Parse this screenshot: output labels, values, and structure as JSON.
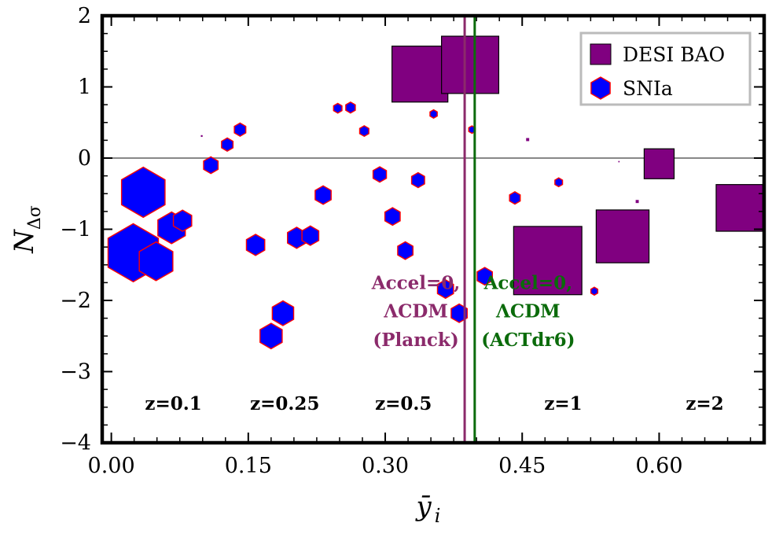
{
  "chart_data": {
    "type": "scatter",
    "xlabel": "ȳ",
    "xlabel_sub": "i",
    "ylabel": "N",
    "ylabel_sub": "Δσ",
    "xlim": [
      -0.01,
      0.715
    ],
    "ylim": [
      -4,
      2
    ],
    "x_ticks": [
      {
        "value": 0.0,
        "label": "0.00"
      },
      {
        "value": 0.15,
        "label": "0.15"
      },
      {
        "value": 0.3,
        "label": "0.30"
      },
      {
        "value": 0.45,
        "label": "0.45"
      },
      {
        "value": 0.6,
        "label": "0.60"
      }
    ],
    "y_ticks": [
      {
        "value": 2,
        "label": "2"
      },
      {
        "value": 1,
        "label": "1"
      },
      {
        "value": 0,
        "label": "0"
      },
      {
        "value": -1,
        "label": "−1"
      },
      {
        "value": -2,
        "label": "−2"
      },
      {
        "value": -3,
        "label": "−3"
      },
      {
        "value": -4,
        "label": "−4"
      }
    ],
    "legend": {
      "position": "top-right",
      "entries": [
        {
          "label": "DESI BAO",
          "marker": "square",
          "color": "#800080"
        },
        {
          "label": "SNIa",
          "marker": "hexagon",
          "color": "#0000ff",
          "edge": "#ff0000"
        }
      ]
    },
    "series": [
      {
        "name": "DESI BAO",
        "marker": "square",
        "color": "#800080",
        "edge": "#000000",
        "points": [
          {
            "x": 0.338,
            "y": 1.18,
            "weight": 1.27
          },
          {
            "x": 0.393,
            "y": 1.31,
            "weight": 1.3
          },
          {
            "x": 0.478,
            "y": -1.44,
            "weight": 1.55
          },
          {
            "x": 0.56,
            "y": -1.1,
            "weight": 1.2
          },
          {
            "x": 0.6,
            "y": -0.08,
            "weight": 0.68
          },
          {
            "x": 0.688,
            "y": -0.7,
            "weight": 1.06
          },
          {
            "x": 0.099,
            "y": 0.31,
            "weight": 0.04
          },
          {
            "x": 0.456,
            "y": 0.26,
            "weight": 0.07
          },
          {
            "x": 0.576,
            "y": -0.61,
            "weight": 0.07
          },
          {
            "x": 0.556,
            "y": -0.05,
            "weight": 0.03
          }
        ]
      },
      {
        "name": "SNIa",
        "marker": "hexagon",
        "color": "#0000ff",
        "edge": "#ff0000",
        "points": [
          {
            "x": 0.024,
            "y": -1.33,
            "weight": 1.32
          },
          {
            "x": 0.035,
            "y": -0.48,
            "weight": 1.14
          },
          {
            "x": 0.049,
            "y": -1.45,
            "weight": 0.88
          },
          {
            "x": 0.066,
            "y": -0.98,
            "weight": 0.72
          },
          {
            "x": 0.078,
            "y": -0.88,
            "weight": 0.48
          },
          {
            "x": 0.109,
            "y": -0.1,
            "weight": 0.38
          },
          {
            "x": 0.127,
            "y": 0.19,
            "weight": 0.3
          },
          {
            "x": 0.141,
            "y": 0.4,
            "weight": 0.3
          },
          {
            "x": 0.158,
            "y": -1.22,
            "weight": 0.48
          },
          {
            "x": 0.175,
            "y": -2.5,
            "weight": 0.58
          },
          {
            "x": 0.188,
            "y": -2.18,
            "weight": 0.56
          },
          {
            "x": 0.203,
            "y": -1.12,
            "weight": 0.48
          },
          {
            "x": 0.218,
            "y": -1.09,
            "weight": 0.44
          },
          {
            "x": 0.232,
            "y": -0.52,
            "weight": 0.42
          },
          {
            "x": 0.248,
            "y": 0.7,
            "weight": 0.22
          },
          {
            "x": 0.262,
            "y": 0.71,
            "weight": 0.25
          },
          {
            "x": 0.277,
            "y": 0.38,
            "weight": 0.24
          },
          {
            "x": 0.294,
            "y": -0.23,
            "weight": 0.35
          },
          {
            "x": 0.308,
            "y": -0.82,
            "weight": 0.4
          },
          {
            "x": 0.322,
            "y": -1.3,
            "weight": 0.4
          },
          {
            "x": 0.336,
            "y": -0.31,
            "weight": 0.34
          },
          {
            "x": 0.353,
            "y": 0.62,
            "weight": 0.19
          },
          {
            "x": 0.366,
            "y": -1.84,
            "weight": 0.42
          },
          {
            "x": 0.381,
            "y": -2.18,
            "weight": 0.42
          },
          {
            "x": 0.395,
            "y": 0.4,
            "weight": 0.17
          },
          {
            "x": 0.409,
            "y": -1.66,
            "weight": 0.4
          },
          {
            "x": 0.442,
            "y": -0.56,
            "weight": 0.28
          },
          {
            "x": 0.49,
            "y": -0.34,
            "weight": 0.2
          },
          {
            "x": 0.529,
            "y": -1.87,
            "weight": 0.18
          }
        ]
      }
    ],
    "vertical_lines": [
      {
        "x": 0.387,
        "color": "#8b2a6b",
        "label_lines": [
          "Accel=0,",
          "ΛCDM",
          "(Planck)"
        ]
      },
      {
        "x": 0.398,
        "color": "#0b6b0b",
        "label_lines": [
          "Accel=0,",
          "ΛCDM",
          "(ACTdr6)"
        ]
      }
    ],
    "horizontal_lines": [
      {
        "y": 0,
        "color": "#888888"
      }
    ],
    "redshift_labels": [
      {
        "x": 0.068,
        "text": "z=0.1"
      },
      {
        "x": 0.19,
        "text": "z=0.25"
      },
      {
        "x": 0.32,
        "text": "z=0.5"
      },
      {
        "x": 0.495,
        "text": "z=1"
      },
      {
        "x": 0.65,
        "text": "z=2"
      }
    ],
    "redshift_label_y": -3.45,
    "annotation_y": [
      -1.75,
      -2.15,
      -2.55
    ]
  }
}
